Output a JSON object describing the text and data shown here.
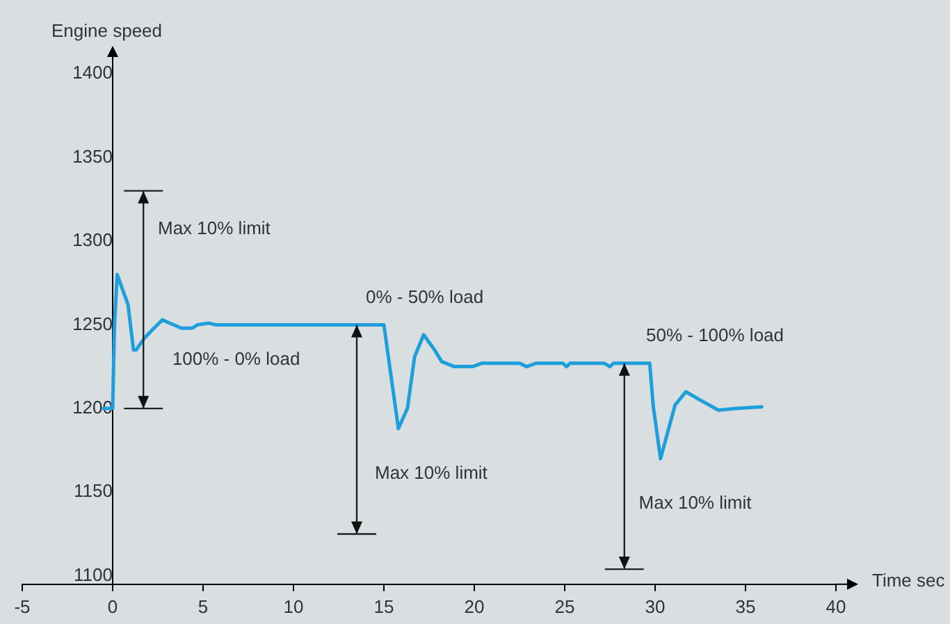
{
  "chart_data": {
    "type": "line",
    "ylabel": "Engine speed",
    "xlabel": "Time sec",
    "x": [
      -0.5,
      0,
      0.1,
      0.25,
      0.85,
      1.15,
      1.3,
      1.75,
      2.2,
      2.75,
      3.15,
      3.8,
      4.4,
      4.7,
      5.3,
      5.7,
      15.0,
      15.8,
      16.3,
      16.7,
      17.2,
      17.8,
      18.2,
      18.9,
      19.9,
      20.4,
      22.5,
      22.9,
      23.4,
      24.9,
      25.1,
      25.3,
      27.2,
      27.5,
      27.7,
      29.7,
      29.9,
      30.3,
      30.7,
      31.1,
      31.7,
      32.5,
      33.5,
      34.5,
      35.9
    ],
    "series": [
      {
        "color": "#1e9fdc",
        "values": [
          1200,
          1200,
          1250,
          1280,
          1262,
          1235,
          1235,
          1242,
          1247,
          1253,
          1251,
          1248,
          1248,
          1250,
          1251,
          1250,
          1250,
          1188,
          1200,
          1231,
          1244,
          1235,
          1228,
          1225,
          1225,
          1227,
          1227,
          1225,
          1227,
          1227,
          1225,
          1227,
          1227,
          1225,
          1227,
          1227,
          1201,
          1170,
          1186,
          1202,
          1210,
          1205,
          1199,
          1200,
          1201
        ]
      }
    ],
    "xlim": [
      -5,
      40
    ],
    "xticks": [
      -5,
      0,
      5,
      10,
      15,
      20,
      25,
      30,
      35,
      40
    ],
    "ylim": [
      1095,
      1400
    ],
    "yticks": [
      1100,
      1150,
      1200,
      1250,
      1300,
      1350,
      1400
    ],
    "grid": false,
    "legend": false,
    "marker": "none",
    "line_style": "solid",
    "annotations": [
      "Max 10% limit",
      "100% - 0% load",
      "0% - 50% load",
      "Max 10% limit",
      "50% - 100% load",
      "Max 10% limit"
    ]
  }
}
